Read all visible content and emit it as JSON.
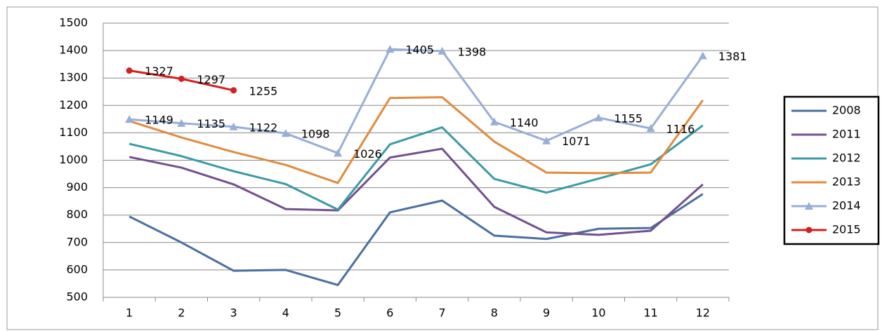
{
  "chart_data": {
    "type": "line",
    "x": [
      1,
      2,
      3,
      4,
      5,
      6,
      7,
      8,
      9,
      10,
      11,
      12
    ],
    "xlim": [
      0.5,
      12.5
    ],
    "ylim": [
      500,
      1500
    ],
    "yticks": [
      500,
      600,
      700,
      800,
      900,
      1000,
      1100,
      1200,
      1300,
      1400,
      1500
    ],
    "grid": true,
    "legend": "right",
    "series": [
      {
        "name": "2008",
        "color": "#4a6fa0",
        "values": [
          795,
          700,
          597,
          600,
          545,
          810,
          853,
          725,
          713,
          750,
          753,
          877
        ]
      },
      {
        "name": "2011",
        "color": "#72508f",
        "values": [
          1012,
          973,
          912,
          822,
          817,
          1010,
          1042,
          830,
          737,
          728,
          743,
          912
        ]
      },
      {
        "name": "2012",
        "color": "#3b9ba5",
        "values": [
          1060,
          1015,
          960,
          913,
          820,
          1058,
          1120,
          932,
          882,
          933,
          985,
          1127
        ]
      },
      {
        "name": "2013",
        "color": "#e08b3d",
        "values": [
          1143,
          1083,
          1030,
          983,
          917,
          1227,
          1230,
          1068,
          955,
          953,
          955,
          1219
        ]
      },
      {
        "name": "2014",
        "color": "#97aed6",
        "marker": "triangle",
        "show_labels": true,
        "values": [
          1149,
          1135,
          1122,
          1098,
          1026,
          1405,
          1398,
          1140,
          1071,
          1155,
          1116,
          1381
        ]
      },
      {
        "name": "2015",
        "color": "#d42020",
        "marker": "circle",
        "show_labels": true,
        "values": [
          1327,
          1297,
          1255,
          null,
          null,
          null,
          null,
          null,
          null,
          null,
          null,
          null
        ]
      }
    ]
  }
}
